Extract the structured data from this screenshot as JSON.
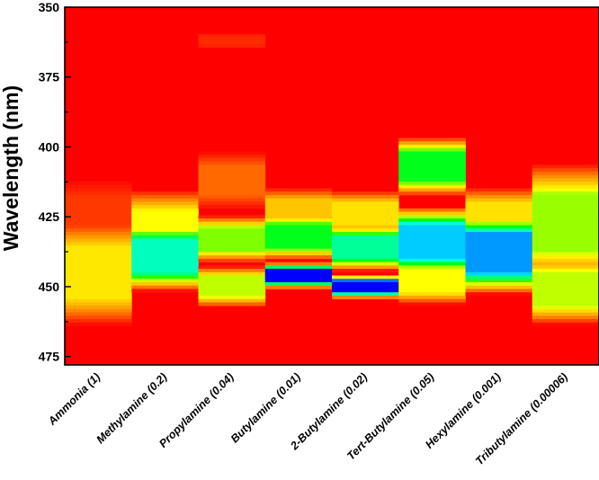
{
  "chart_data": {
    "type": "heatmap",
    "title": "",
    "xlabel": "",
    "ylabel": "Wavelength (nm)",
    "ylim": [
      350,
      478
    ],
    "yticks": [
      350,
      375,
      400,
      425,
      450,
      475
    ],
    "y_inverted": true,
    "background_value": 0,
    "colorscale": [
      "#ff0000",
      "#ff8c00",
      "#ffff00",
      "#00ff00",
      "#00ffff",
      "#0000ff"
    ],
    "categories": [
      "Ammonia (1)",
      "Methylamine (0.2)",
      "Propylamine (0.04)",
      "Butylamine (0.01)",
      "2-Butylamine (0.02)",
      "Tert-Butylamine (0.05)",
      "Hexylamine (0.001)",
      "Tributylamine (0.00006)"
    ],
    "series": [
      {
        "peaks": [
          [
            445,
            0.36,
            9
          ],
          [
            424,
            0.08,
            6
          ]
        ]
      },
      {
        "peaks": [
          [
            439,
            0.75,
            6
          ],
          [
            430,
            0.4,
            7
          ]
        ]
      },
      {
        "peaks": [
          [
            450,
            0.45,
            3.5
          ],
          [
            433,
            0.5,
            4
          ],
          [
            362,
            0.06,
            1.5
          ],
          [
            412,
            0.15,
            5
          ]
        ]
      },
      {
        "peaks": [
          [
            446,
            1.0,
            2.2
          ],
          [
            432,
            0.62,
            4
          ],
          [
            423,
            0.3,
            4
          ]
        ]
      },
      {
        "peaks": [
          [
            450,
            1.0,
            2
          ],
          [
            436,
            0.72,
            4
          ],
          [
            424,
            0.35,
            4
          ]
        ]
      },
      {
        "peaks": [
          [
            434,
            0.84,
            6
          ],
          [
            407,
            0.62,
            5
          ],
          [
            448,
            0.4,
            4
          ]
        ]
      },
      {
        "peaks": [
          [
            438,
            0.88,
            7
          ],
          [
            425,
            0.35,
            5
          ]
        ]
      },
      {
        "peaks": [
          [
            427,
            0.48,
            10
          ],
          [
            451,
            0.45,
            6
          ]
        ]
      }
    ]
  }
}
